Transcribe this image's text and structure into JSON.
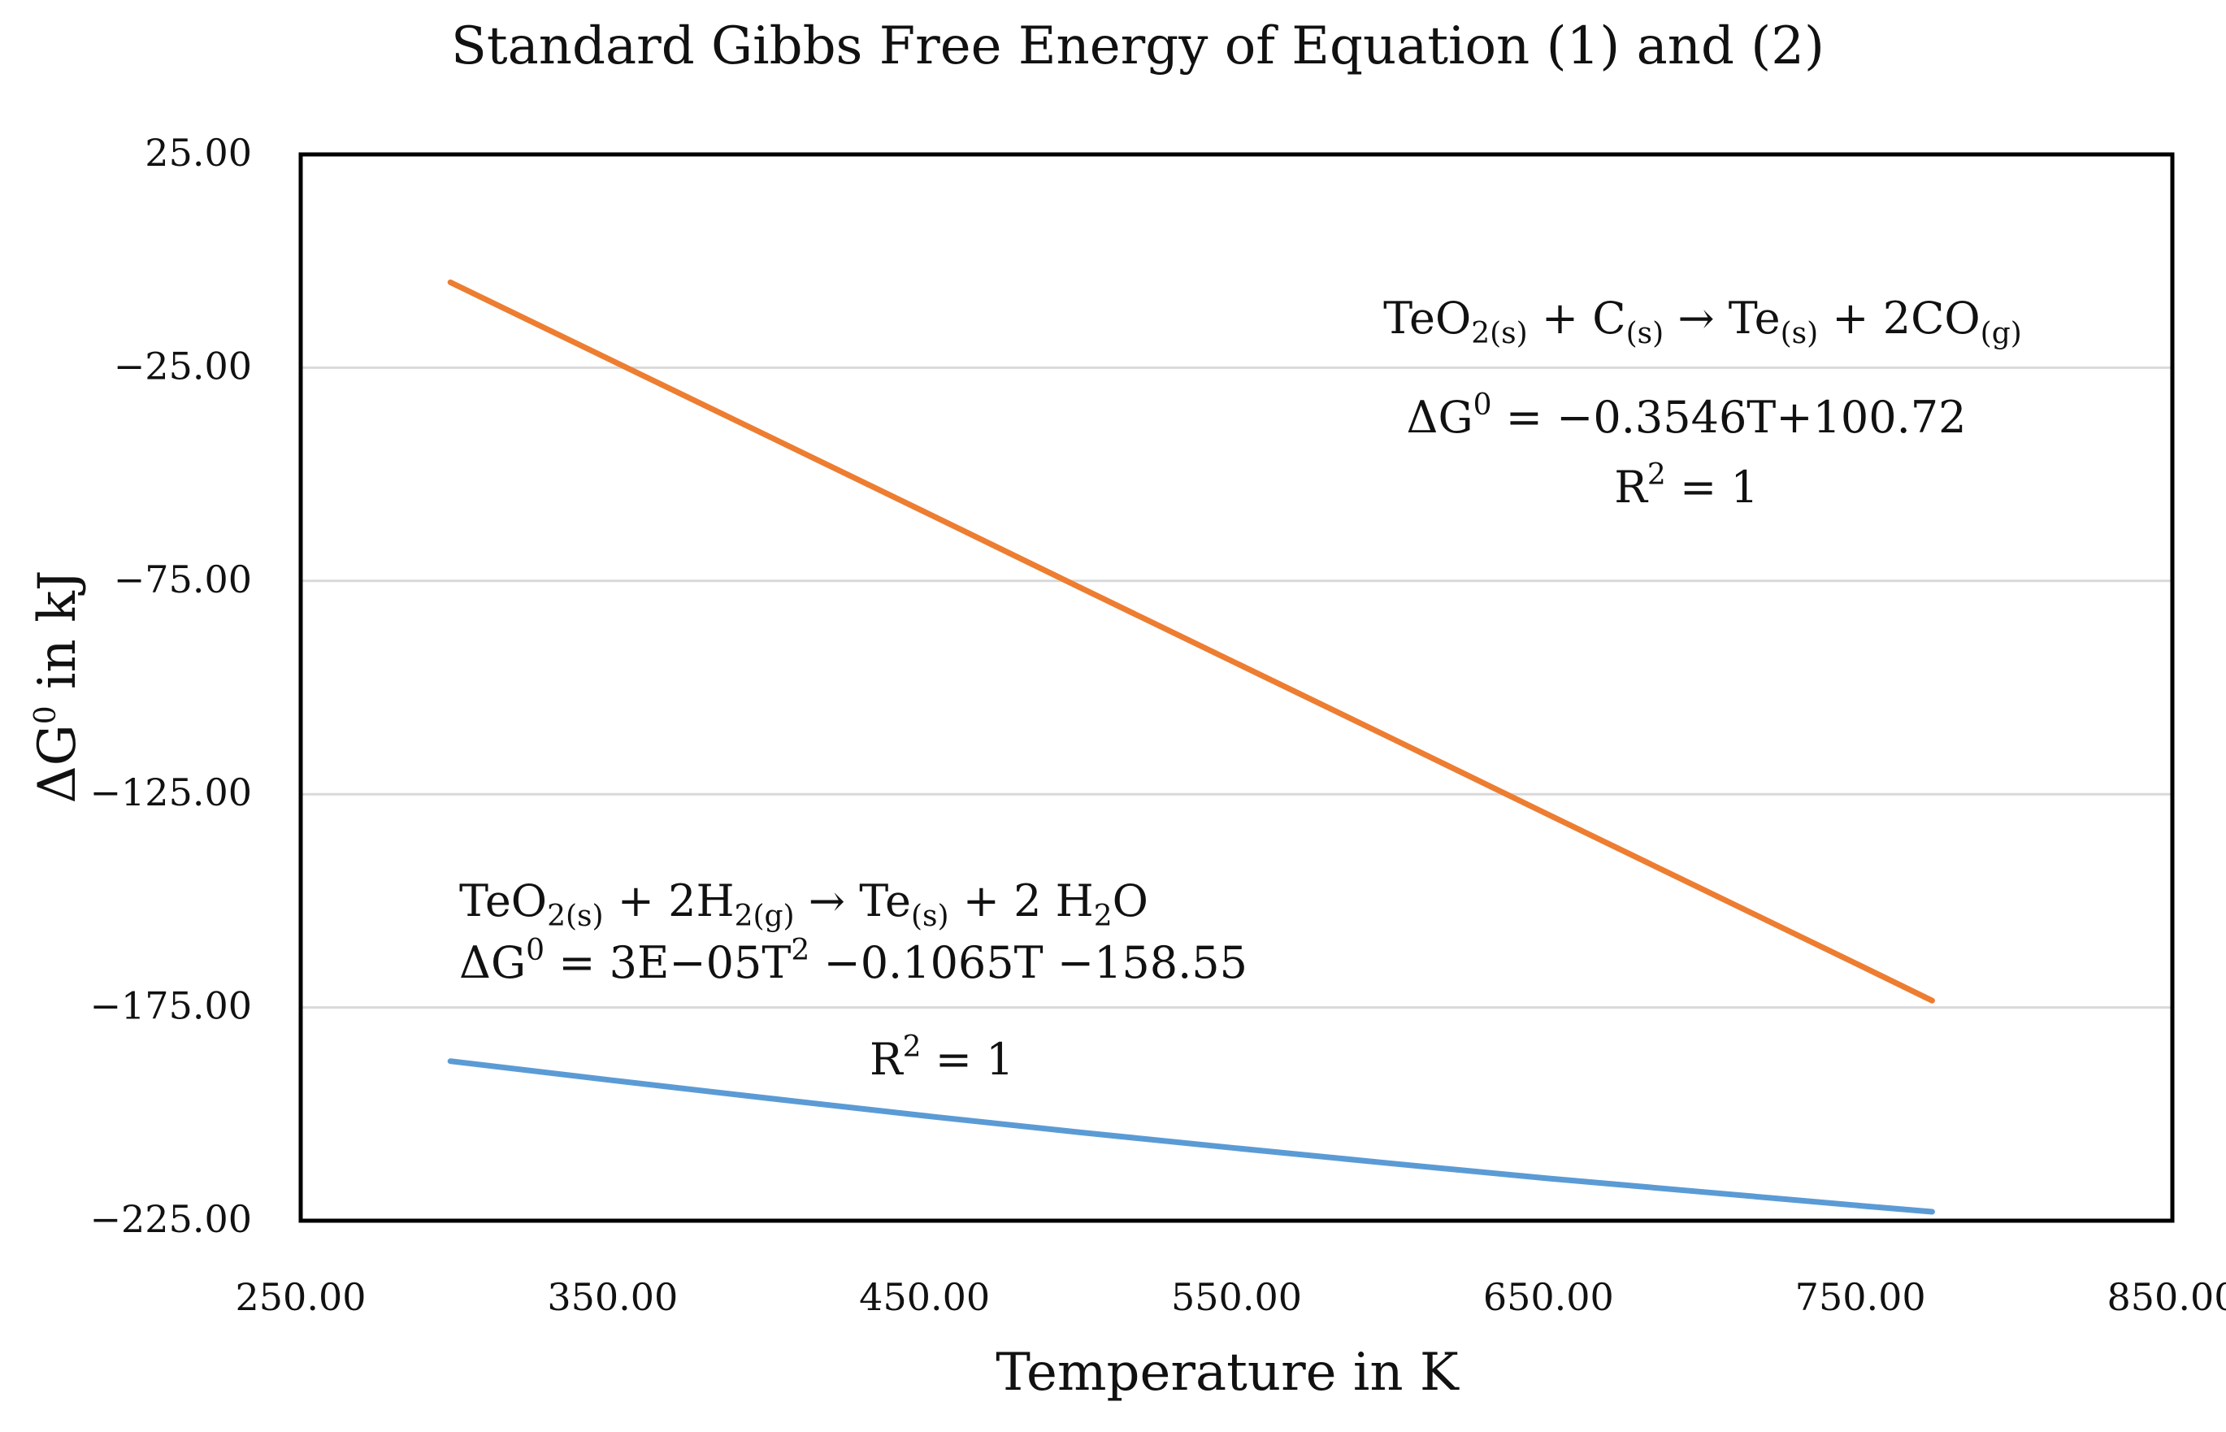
{
  "chart_data": {
    "type": "line",
    "title": "Standard Gibbs Free Energy of Equation (1) and (2)",
    "xlabel": "Temperature in K",
    "ylabel": {
      "base": "ΔG",
      "sup": "0",
      "rest": " in kJ"
    },
    "xlim": [
      250,
      850
    ],
    "ylim": [
      -225,
      25
    ],
    "x_ticks": [
      "250.00",
      "350.00",
      "450.00",
      "550.00",
      "650.00",
      "750.00",
      "850.00"
    ],
    "y_ticks": [
      "25.00",
      "−25.00",
      "−75.00",
      "−125.00",
      "−175.00",
      "−225.00"
    ],
    "grid": true,
    "colors": {
      "series1": "#ED7D31",
      "series2": "#5B9BD5",
      "grid": "#D9D9D9",
      "frame": "#000000"
    },
    "series": [
      {
        "name": "TeO2(s) + C(s) → Te(s) + 2CO(g)",
        "color": "#ED7D31",
        "x": [
          298,
          350,
          400,
          450,
          500,
          550,
          600,
          650,
          700,
          750,
          773
        ],
        "y": [
          -5.0,
          -23.4,
          -41.1,
          -58.8,
          -76.6,
          -94.3,
          -112.0,
          -129.8,
          -147.5,
          -165.2,
          -173.4
        ]
      },
      {
        "name": "TeO2(s) + 2H2(g) → Te(s) + 2 H2O",
        "color": "#5B9BD5",
        "x": [
          298,
          350,
          400,
          450,
          500,
          550,
          600,
          650,
          700,
          750,
          773
        ],
        "y": [
          -187.6,
          -192.1,
          -196.3,
          -200.4,
          -204.3,
          -208.0,
          -211.6,
          -215.1,
          -218.3,
          -221.5,
          -222.9
        ]
      }
    ],
    "annotations": {
      "eq1": {
        "p1": "TeO",
        "s1": "2(s)",
        "p2": " + C",
        "s2": "(s)",
        "arrow": " → ",
        "p3": "Te",
        "s3": "(s)",
        "p4": " + 2CO",
        "s4": "(g)",
        "fit_a": "ΔG",
        "fit_sup": "0",
        "fit_b": " = −0.3546T+100.72",
        "r2_a": "R",
        "r2_sup": "2",
        "r2_b": " = 1"
      },
      "eq2": {
        "p1": "TeO",
        "s1": "2(s)",
        "p2": " + 2H",
        "s2": "2(g)",
        "arrow": " → ",
        "p3": "Te",
        "s3": "(s)",
        "p4": " + 2 H",
        "s4": "2",
        "p5": "O",
        "fit_a": "ΔG",
        "fit_sup": "0",
        "fit_b": " = 3E−05T",
        "fit_sup2": "2",
        "fit_c": " −0.1065T −158.55",
        "r2_a": "R",
        "r2_sup": "2",
        "r2_b": " = 1"
      }
    }
  }
}
